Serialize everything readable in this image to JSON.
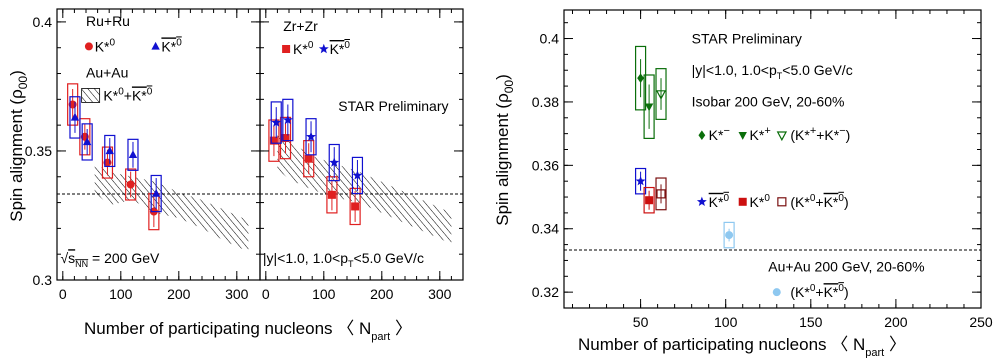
{
  "chart_data": [
    {
      "type": "scatter",
      "panel": "left",
      "ylabel": "Spin alignment (ρ00)",
      "xlabel": "Number of participating nucleons ⟨ Npart ⟩",
      "ylim": [
        0.3,
        0.405
      ],
      "y_ticks": [
        {
          "v": 0.3,
          "label": "0.3"
        },
        {
          "v": 0.35,
          "label": "0.35"
        },
        {
          "v": 0.4,
          "label": "0.4"
        }
      ],
      "reference_line": 0.3333,
      "sub_panels": [
        {
          "name": "Ru+Ru",
          "xlim": [
            -10,
            340
          ],
          "x_ticks": [
            {
              "v": 0,
              "label": "0"
            },
            {
              "v": 100,
              "label": "100"
            },
            {
              "v": 200,
              "label": "200"
            },
            {
              "v": 300,
              "label": "300"
            }
          ],
          "label_lines": [
            {
              "text": "Ru+Ru",
              "x": 40,
              "y": 0.3985
            },
            {
              "text": "Au+Au",
              "x": 40,
              "y": 0.3785
            }
          ],
          "legend": [
            {
              "marker": "circle",
              "color": "#e02020",
              "label": "K*0",
              "sx": 45,
              "lx": 55,
              "y": 0.3905
            },
            {
              "marker": "triangle",
              "color": "#1010d0",
              "label": "K*0 (anti)",
              "sx": 160,
              "lx": 170,
              "y": 0.3905
            },
            {
              "marker": "hatch",
              "color": "#000000",
              "label": "K*0+K*0 (anti)",
              "sx": 48,
              "lx": 70,
              "y": 0.3715
            }
          ],
          "annotations": [
            {
              "text": "√sNN = 200 GeV",
              "x": -4,
              "y": 0.3065
            }
          ],
          "band": {
            "x": [
              55,
              80,
              120,
              160,
              200,
              240,
              280,
              320
            ],
            "lo": [
              0.334,
              0.329,
              0.331,
              0.326,
              0.324,
              0.32,
              0.315,
              0.311
            ],
            "hi": [
              0.345,
              0.342,
              0.34,
              0.338,
              0.334,
              0.331,
              0.327,
              0.323
            ]
          },
          "series": [
            {
              "name": "K*0",
              "marker": "circle",
              "color": "#e02020",
              "points": [
                {
                  "x": 17,
                  "y": 0.368,
                  "err": 0.006,
                  "sys": 0.008
                },
                {
                  "x": 38,
                  "y": 0.3555,
                  "err": 0.005,
                  "sys": 0.007
                },
                {
                  "x": 77,
                  "y": 0.3455,
                  "err": 0.005,
                  "sys": 0.006
                },
                {
                  "x": 117,
                  "y": 0.337,
                  "err": 0.005,
                  "sys": 0.006
                },
                {
                  "x": 157,
                  "y": 0.3265,
                  "err": 0.006,
                  "sys": 0.007
                }
              ]
            },
            {
              "name": "K*0 (anti)",
              "marker": "triangle",
              "color": "#1010d0",
              "points": [
                {
                  "x": 21,
                  "y": 0.363,
                  "err": 0.006,
                  "sys": 0.008
                },
                {
                  "x": 42,
                  "y": 0.3535,
                  "err": 0.005,
                  "sys": 0.007
                },
                {
                  "x": 81,
                  "y": 0.35,
                  "err": 0.005,
                  "sys": 0.006
                },
                {
                  "x": 121,
                  "y": 0.3485,
                  "err": 0.005,
                  "sys": 0.006
                },
                {
                  "x": 161,
                  "y": 0.3335,
                  "err": 0.006,
                  "sys": 0.007
                }
              ]
            }
          ]
        },
        {
          "name": "Zr+Zr",
          "xlim": [
            -10,
            340
          ],
          "x_ticks": [
            {
              "v": 0,
              "label": "0"
            },
            {
              "v": 100,
              "label": "100"
            },
            {
              "v": 200,
              "label": "200"
            },
            {
              "v": 300,
              "label": "300"
            }
          ],
          "label_lines": [
            {
              "text": "Zr+Zr",
              "x": 30,
              "y": 0.3965
            }
          ],
          "legend": [
            {
              "marker": "square",
              "color": "#e02020",
              "label": "K*0",
              "sx": 35,
              "lx": 47,
              "y": 0.3895
            },
            {
              "marker": "star",
              "color": "#1010d0",
              "label": "K*0 (anti)",
              "sx": 100,
              "lx": 110,
              "y": 0.3895
            }
          ],
          "annotations": [
            {
              "text": "STAR Preliminary",
              "x": 125,
              "y": 0.3655
            },
            {
              "text": "|y|<1.0, 1.0<pT<5.0 GeV/c",
              "x": -5,
              "y": 0.3065
            }
          ],
          "band": {
            "x": [
              20,
              40,
              80,
              120,
              160,
              200,
              240,
              280,
              320
            ],
            "lo": [
              0.343,
              0.339,
              0.335,
              0.332,
              0.33,
              0.326,
              0.322,
              0.318,
              0.314
            ],
            "hi": [
              0.358,
              0.354,
              0.348,
              0.345,
              0.342,
              0.338,
              0.334,
              0.33,
              0.326
            ]
          },
          "series": [
            {
              "name": "K*0",
              "marker": "square",
              "color": "#e02020",
              "points": [
                {
                  "x": 14,
                  "y": 0.354,
                  "err": 0.006,
                  "sys": 0.008
                },
                {
                  "x": 34,
                  "y": 0.355,
                  "err": 0.006,
                  "sys": 0.008
                },
                {
                  "x": 74,
                  "y": 0.347,
                  "err": 0.006,
                  "sys": 0.007
                },
                {
                  "x": 114,
                  "y": 0.333,
                  "err": 0.006,
                  "sys": 0.007
                },
                {
                  "x": 154,
                  "y": 0.3285,
                  "err": 0.006,
                  "sys": 0.007
                }
              ]
            },
            {
              "name": "K*0 (anti)",
              "marker": "star",
              "color": "#1010d0",
              "points": [
                {
                  "x": 18,
                  "y": 0.361,
                  "err": 0.006,
                  "sys": 0.008
                },
                {
                  "x": 38,
                  "y": 0.362,
                  "err": 0.006,
                  "sys": 0.008
                },
                {
                  "x": 78,
                  "y": 0.3555,
                  "err": 0.006,
                  "sys": 0.007
                },
                {
                  "x": 118,
                  "y": 0.3455,
                  "err": 0.006,
                  "sys": 0.007
                },
                {
                  "x": 158,
                  "y": 0.3405,
                  "err": 0.006,
                  "sys": 0.007
                }
              ]
            }
          ]
        }
      ]
    },
    {
      "type": "scatter",
      "panel": "right",
      "ylabel": "Spin alignment (ρ00)",
      "xlabel": "Number of participating nucleons ⟨ Npart ⟩",
      "xlim": [
        5,
        250
      ],
      "ylim": [
        0.315,
        0.409
      ],
      "x_ticks": [
        {
          "v": 50,
          "label": "50"
        },
        {
          "v": 100,
          "label": "100"
        },
        {
          "v": 150,
          "label": "150"
        },
        {
          "v": 200,
          "label": "200"
        },
        {
          "v": 250,
          "label": "250"
        }
      ],
      "y_ticks": [
        {
          "v": 0.32,
          "label": "0.32"
        },
        {
          "v": 0.34,
          "label": "0.34"
        },
        {
          "v": 0.36,
          "label": "0.36"
        },
        {
          "v": 0.38,
          "label": "0.38"
        },
        {
          "v": 0.4,
          "label": "0.4"
        }
      ],
      "reference_line": 0.3333,
      "annotations": [
        {
          "text": "STAR Preliminary",
          "x": 80,
          "y": 0.3985
        },
        {
          "text": "|y|<1.0, 1.0<pT<5.0 GeV/c",
          "x": 80,
          "y": 0.3885
        },
        {
          "text": "Isobar 200 GeV, 20-60%",
          "x": 80,
          "y": 0.3785
        },
        {
          "text": "Au+Au 200 GeV, 20-60%",
          "x": 125,
          "y": 0.3265
        }
      ],
      "legend": [
        {
          "marker": "diamond",
          "color": "#0a6e0a",
          "label": "K*−",
          "sx": 86,
          "lx": 90,
          "y": 0.3695
        },
        {
          "marker": "triangle-down",
          "color": "#0a6e0a",
          "label": "K*+",
          "sx": 110,
          "lx": 114,
          "y": 0.3695
        },
        {
          "marker": "triangle-down-open",
          "color": "#0a6e0a",
          "label": "(K*++K*−)",
          "sx": 133,
          "lx": 138,
          "y": 0.3695
        },
        {
          "marker": "star",
          "color": "#1010d0",
          "label": "K*0 (anti)",
          "sx": 86,
          "lx": 90,
          "y": 0.3485
        },
        {
          "marker": "square",
          "color": "#cc1010",
          "label": "K*0",
          "sx": 110,
          "lx": 114,
          "y": 0.3485
        },
        {
          "marker": "square-open",
          "color": "#7a1010",
          "label": "(K*0+K*0 (anti))",
          "sx": 133,
          "lx": 138,
          "y": 0.3485
        },
        {
          "marker": "circle",
          "color": "#8ec8f0",
          "label": "(K*0+K*0 (anti)) Au+Au",
          "sx": 130,
          "lx": 138,
          "y": 0.32
        }
      ],
      "series": [
        {
          "name": "K*−",
          "marker": "diamond",
          "color": "#0a6e0a",
          "points": [
            {
              "x": 50,
              "y": 0.3875,
              "err": 0.006,
              "sys": 0.01
            }
          ]
        },
        {
          "name": "K*+",
          "marker": "triangle-down",
          "color": "#0a6e0a",
          "points": [
            {
              "x": 55,
              "y": 0.3785,
              "err": 0.007,
              "sys": 0.01
            }
          ]
        },
        {
          "name": "(K*++K*−)",
          "marker": "triangle-down-open",
          "color": "#0a6e0a",
          "points": [
            {
              "x": 62,
              "y": 0.3825,
              "err": 0.005,
              "sys": 0.008
            }
          ]
        },
        {
          "name": "K*0 (anti)",
          "marker": "star",
          "color": "#1010d0",
          "points": [
            {
              "x": 50,
              "y": 0.355,
              "err": 0.003,
              "sys": 0.004
            }
          ]
        },
        {
          "name": "K*0",
          "marker": "square",
          "color": "#cc1010",
          "points": [
            {
              "x": 55,
              "y": 0.349,
              "err": 0.003,
              "sys": 0.004
            }
          ]
        },
        {
          "name": "(K*0+K*0 (anti))",
          "marker": "square-open",
          "color": "#7a1010",
          "points": [
            {
              "x": 62,
              "y": 0.351,
              "err": 0.003,
              "sys": 0.005
            }
          ]
        },
        {
          "name": "(K*0+K*0 (anti)) Au+Au",
          "marker": "circle",
          "color": "#8ec8f0",
          "points": [
            {
              "x": 102,
              "y": 0.338,
              "err": 0.002,
              "sys": 0.004
            }
          ]
        }
      ]
    }
  ]
}
